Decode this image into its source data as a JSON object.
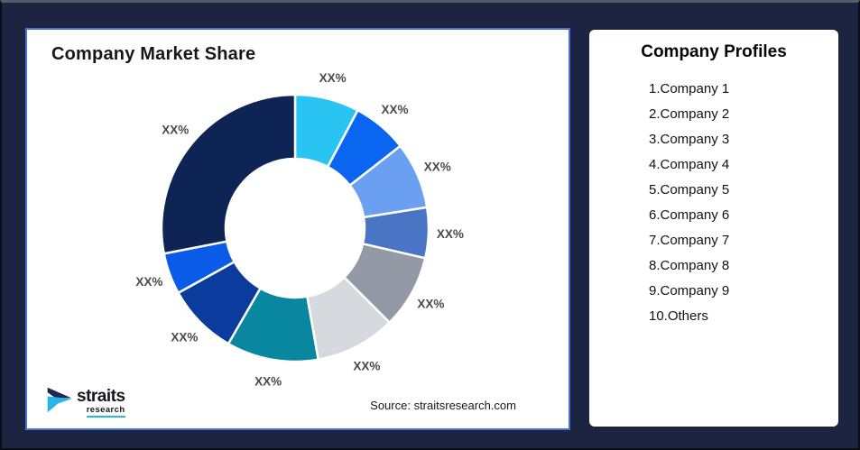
{
  "frame": {
    "bg_color": "#1c2441",
    "card_border_color": "#4a72d4"
  },
  "chart_card": {
    "title": "Company Market Share",
    "source": "Source: straitsresearch.com"
  },
  "logo": {
    "name": "straits",
    "sub": "research",
    "navy": "#1b2a4f",
    "cyan": "#29b5e8"
  },
  "profiles_card": {
    "title": "Company Profiles",
    "items": [
      "1.Company 1",
      "2.Company 2",
      "3.Company 3",
      "4.Company 4",
      "5.Company 5",
      "6.Company 6",
      "7.Company 7",
      "8.Company 8",
      "9.Company 9",
      "10.Others"
    ]
  },
  "chart_data": {
    "type": "pie",
    "subtype": "donut",
    "title": "Company Market Share",
    "legend": "none",
    "start_angle_deg": 0,
    "clockwise": true,
    "label_text": "XX%",
    "label_color": "#4a4a4a",
    "segments": [
      {
        "label": "XX%",
        "color": "#29c4f2",
        "angle_deg": 28,
        "approx_pct": 8
      },
      {
        "label": "XX%",
        "color": "#0a66f0",
        "angle_deg": 24,
        "approx_pct": 7
      },
      {
        "label": "XX%",
        "color": "#6b9ff2",
        "angle_deg": 29,
        "approx_pct": 8
      },
      {
        "label": "XX%",
        "color": "#4a75c4",
        "angle_deg": 22,
        "approx_pct": 6
      },
      {
        "label": "XX%",
        "color": "#939aa6",
        "angle_deg": 32,
        "approx_pct": 9
      },
      {
        "label": "XX%",
        "color": "#d6dade",
        "angle_deg": 35,
        "approx_pct": 10
      },
      {
        "label": "XX%",
        "color": "#0a87a0",
        "angle_deg": 40,
        "approx_pct": 11
      },
      {
        "label": "XX%",
        "color": "#0c3b9e",
        "angle_deg": 31,
        "approx_pct": 8
      },
      {
        "label": "XX%",
        "color": "#0a5ce8",
        "angle_deg": 18,
        "approx_pct": 5
      },
      {
        "label": "XX%",
        "color": "#0d2454",
        "angle_deg": 101,
        "approx_pct": 28
      }
    ]
  }
}
